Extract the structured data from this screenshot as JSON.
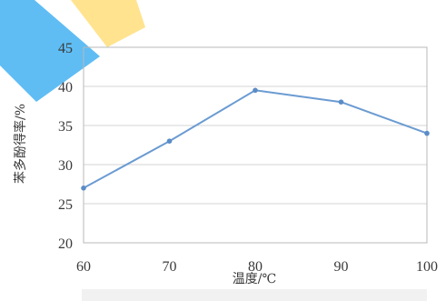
{
  "chart_data": {
    "type": "line",
    "title": "",
    "xlabel": "温度/℃",
    "ylabel": "苯多酚得率/%",
    "x": [
      60,
      70,
      80,
      90,
      100
    ],
    "xlim": [
      60,
      100
    ],
    "ylim": [
      20,
      45
    ],
    "xticks": [
      "60",
      "70",
      "80",
      "90",
      "100"
    ],
    "yticks": [
      "20",
      "25",
      "30",
      "35",
      "40",
      "45"
    ],
    "grid": true,
    "legend": "none",
    "series": [
      {
        "values": [
          27.0,
          33.0,
          39.5,
          38.0,
          34.0
        ],
        "color": "#6b9bd2"
      }
    ]
  }
}
